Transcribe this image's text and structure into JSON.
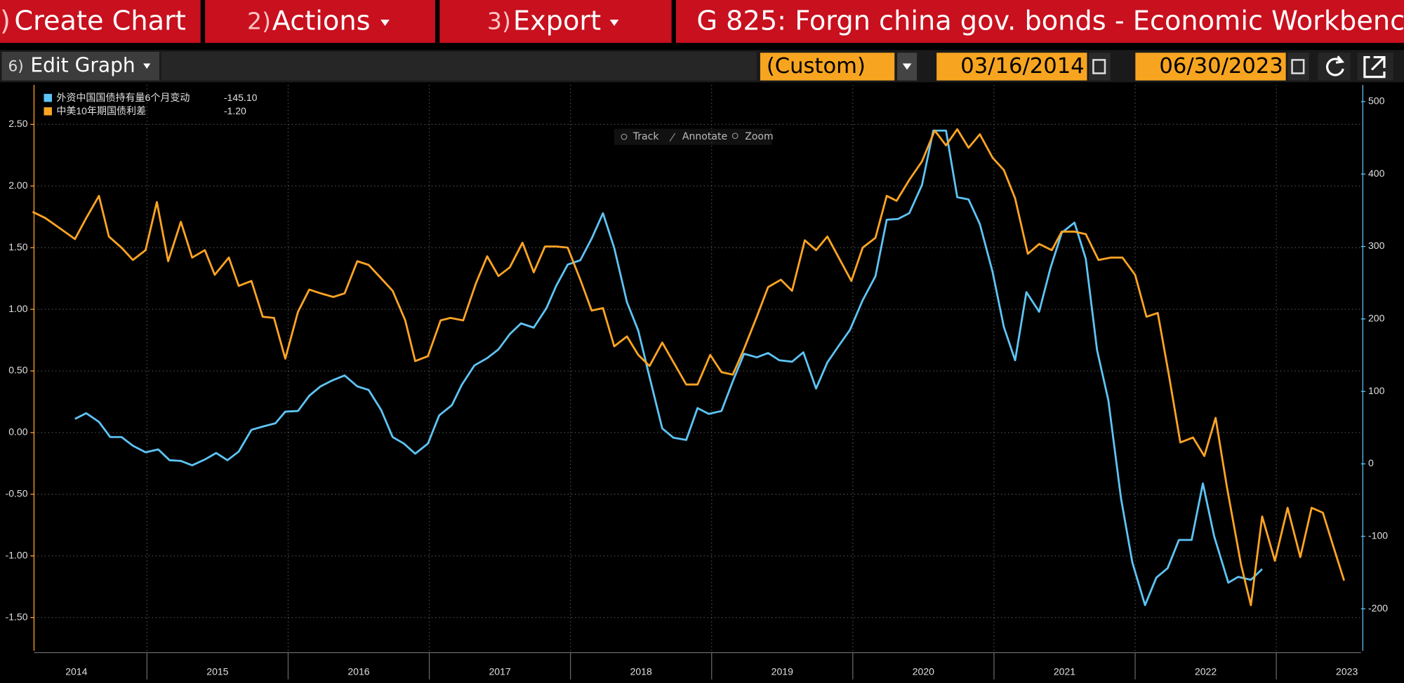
{
  "menu_bar": {
    "items": [
      {
        "key": ")",
        "label": "Create Chart"
      },
      {
        "key": "2)",
        "label": "Actions"
      },
      {
        "key": "3)",
        "label": "Export"
      }
    ],
    "title": "G 825: Forgn china gov. bonds - Economic Workbench"
  },
  "toolbar": {
    "edit": {
      "key": "6)",
      "label": "Edit Graph"
    },
    "period": "(Custom)",
    "start_date": "03/16/2014",
    "end_date": "06/30/2023"
  },
  "chart_tools": [
    "Track",
    "Annotate",
    "Zoom"
  ],
  "chart_data": {
    "type": "line",
    "xlim": [
      2014.2,
      2023.6
    ],
    "xticks": [
      2014,
      2015,
      2016,
      2017,
      2018,
      2019,
      2020,
      2021,
      2022,
      2023
    ],
    "ylim": [
      -1.77,
      2.82
    ],
    "yticks": [
      {
        "value": -1.5,
        "label": "-1.50"
      },
      {
        "value": -1,
        "label": "-1.00"
      },
      {
        "value": -0.5,
        "label": "-0.50"
      },
      {
        "value": 0,
        "label": "0.00"
      },
      {
        "value": 0.5,
        "label": "0.50"
      },
      {
        "value": 1,
        "label": "1.00"
      },
      {
        "value": 1.5,
        "label": "1.50"
      },
      {
        "value": 2,
        "label": "2.00"
      },
      {
        "value": 2.5,
        "label": "2.50"
      }
    ],
    "y2lim": [
      -258,
      523
    ],
    "y2ticks": [
      -200,
      -100,
      0,
      100,
      200,
      300,
      400,
      500
    ],
    "grid": true,
    "legend": "top-left",
    "series": [
      {
        "name": "外资中国国债持有量6个月变动",
        "color": "#5ec4f5",
        "axis": "y2",
        "last_value_label": "-145.10",
        "x": [
          2014.49,
          2014.57,
          2014.66,
          2014.74,
          2014.82,
          2014.9,
          2014.99,
          2015.08,
          2015.16,
          2015.24,
          2015.32,
          2015.41,
          2015.49,
          2015.57,
          2015.65,
          2015.74,
          2015.83,
          2015.91,
          2015.98,
          2016.07,
          2016.15,
          2016.23,
          2016.31,
          2016.4,
          2016.49,
          2016.57,
          2016.66,
          2016.74,
          2016.82,
          2016.9,
          2016.99,
          2017.07,
          2017.16,
          2017.23,
          2017.32,
          2017.41,
          2017.49,
          2017.57,
          2017.65,
          2017.74,
          2017.83,
          2017.9,
          2017.98,
          2018.07,
          2018.15,
          2018.23,
          2018.31,
          2018.4,
          2018.48,
          2018.56,
          2018.65,
          2018.73,
          2018.82,
          2018.9,
          2018.98,
          2019.07,
          2019.15,
          2019.23,
          2019.32,
          2019.4,
          2019.48,
          2019.57,
          2019.65,
          2019.74,
          2019.82,
          2019.9,
          2019.98,
          2020.07,
          2020.16,
          2020.24,
          2020.32,
          2020.4,
          2020.49,
          2020.57,
          2020.66,
          2020.74,
          2020.82,
          2020.9,
          2020.99,
          2021.07,
          2021.15,
          2021.23,
          2021.32,
          2021.4,
          2021.48,
          2021.57,
          2021.65,
          2021.73,
          2021.81,
          2021.9,
          2021.98,
          2022.07,
          2022.15,
          2022.23,
          2022.31,
          2022.4,
          2022.48,
          2022.56,
          2022.66,
          2022.73,
          2022.82,
          2022.9
        ],
        "values": [
          62,
          70,
          58,
          37,
          37,
          25,
          16,
          20,
          5,
          4,
          -2,
          6,
          15,
          5,
          17,
          47,
          52,
          56,
          72,
          73,
          94,
          107,
          115,
          122,
          107,
          102,
          74,
          37,
          28,
          14,
          28,
          67,
          81,
          109,
          136,
          146,
          158,
          179,
          194,
          188,
          215,
          246,
          275,
          281,
          311,
          346,
          298,
          223,
          184,
          120,
          49,
          36,
          33,
          77,
          69,
          73,
          114,
          152,
          147,
          153,
          143,
          141,
          154,
          104,
          140,
          163,
          185,
          226,
          259,
          337,
          338,
          346,
          385,
          460,
          460,
          368,
          365,
          331,
          265,
          189,
          143,
          237,
          210,
          270,
          319,
          333,
          283,
          157,
          88,
          -48,
          -136,
          -195,
          -157,
          -144,
          -105,
          -105,
          -27,
          -100,
          -164,
          -156,
          -160,
          -145.1
        ]
      },
      {
        "name": "中美10年期国债利差",
        "color": "#ffa424",
        "axis": "y",
        "last_value_label": "-1.20",
        "x": [
          2014.19,
          2014.28,
          2014.38,
          2014.49,
          2014.57,
          2014.66,
          2014.73,
          2014.82,
          2014.9,
          2014.99,
          2015.07,
          2015.15,
          2015.24,
          2015.32,
          2015.41,
          2015.48,
          2015.58,
          2015.65,
          2015.74,
          2015.82,
          2015.9,
          2015.98,
          2016.07,
          2016.15,
          2016.23,
          2016.32,
          2016.4,
          2016.49,
          2016.57,
          2016.66,
          2016.74,
          2016.83,
          2016.9,
          2016.99,
          2017.08,
          2017.15,
          2017.24,
          2017.33,
          2017.41,
          2017.49,
          2017.57,
          2017.66,
          2017.74,
          2017.82,
          2017.9,
          2017.98,
          2018.07,
          2018.15,
          2018.23,
          2018.31,
          2018.4,
          2018.48,
          2018.56,
          2018.65,
          2018.73,
          2018.82,
          2018.9,
          2018.99,
          2019.07,
          2019.15,
          2019.23,
          2019.32,
          2019.4,
          2019.49,
          2019.57,
          2019.66,
          2019.74,
          2019.82,
          2019.9,
          2019.99,
          2020.07,
          2020.16,
          2020.24,
          2020.31,
          2020.4,
          2020.49,
          2020.58,
          2020.66,
          2020.74,
          2020.82,
          2020.9,
          2020.99,
          2021.07,
          2021.15,
          2021.24,
          2021.32,
          2021.41,
          2021.48,
          2021.57,
          2021.65,
          2021.74,
          2021.83,
          2021.91,
          2022.0,
          2022.08,
          2022.16,
          2022.24,
          2022.32,
          2022.41,
          2022.49,
          2022.57,
          2022.65,
          2022.75,
          2022.82,
          2022.9,
          2022.99,
          2023.08,
          2023.17,
          2023.25,
          2023.33,
          2023.4,
          2023.48
        ],
        "values": [
          1.79,
          1.74,
          1.66,
          1.57,
          1.74,
          1.92,
          1.59,
          1.5,
          1.4,
          1.48,
          1.87,
          1.39,
          1.71,
          1.42,
          1.48,
          1.28,
          1.42,
          1.19,
          1.23,
          0.94,
          0.93,
          0.6,
          0.98,
          1.16,
          1.13,
          1.1,
          1.13,
          1.39,
          1.36,
          1.25,
          1.15,
          0.91,
          0.58,
          0.62,
          0.91,
          0.93,
          0.91,
          1.21,
          1.43,
          1.27,
          1.34,
          1.54,
          1.3,
          1.51,
          1.51,
          1.5,
          1.24,
          0.99,
          1.01,
          0.7,
          0.78,
          0.63,
          0.54,
          0.73,
          0.57,
          0.39,
          0.39,
          0.63,
          0.49,
          0.47,
          0.68,
          0.94,
          1.18,
          1.24,
          1.15,
          1.56,
          1.48,
          1.59,
          1.42,
          1.23,
          1.5,
          1.58,
          1.92,
          1.88,
          2.05,
          2.2,
          2.45,
          2.33,
          2.46,
          2.31,
          2.42,
          2.23,
          2.13,
          1.9,
          1.45,
          1.53,
          1.48,
          1.63,
          1.63,
          1.61,
          1.4,
          1.42,
          1.42,
          1.28,
          0.94,
          0.97,
          0.46,
          -0.08,
          -0.04,
          -0.19,
          0.12,
          -0.44,
          -1.07,
          -1.4,
          -0.68,
          -1.04,
          -0.61,
          -1.01,
          -0.61,
          -0.65,
          -0.91,
          -1.2
        ]
      }
    ]
  }
}
